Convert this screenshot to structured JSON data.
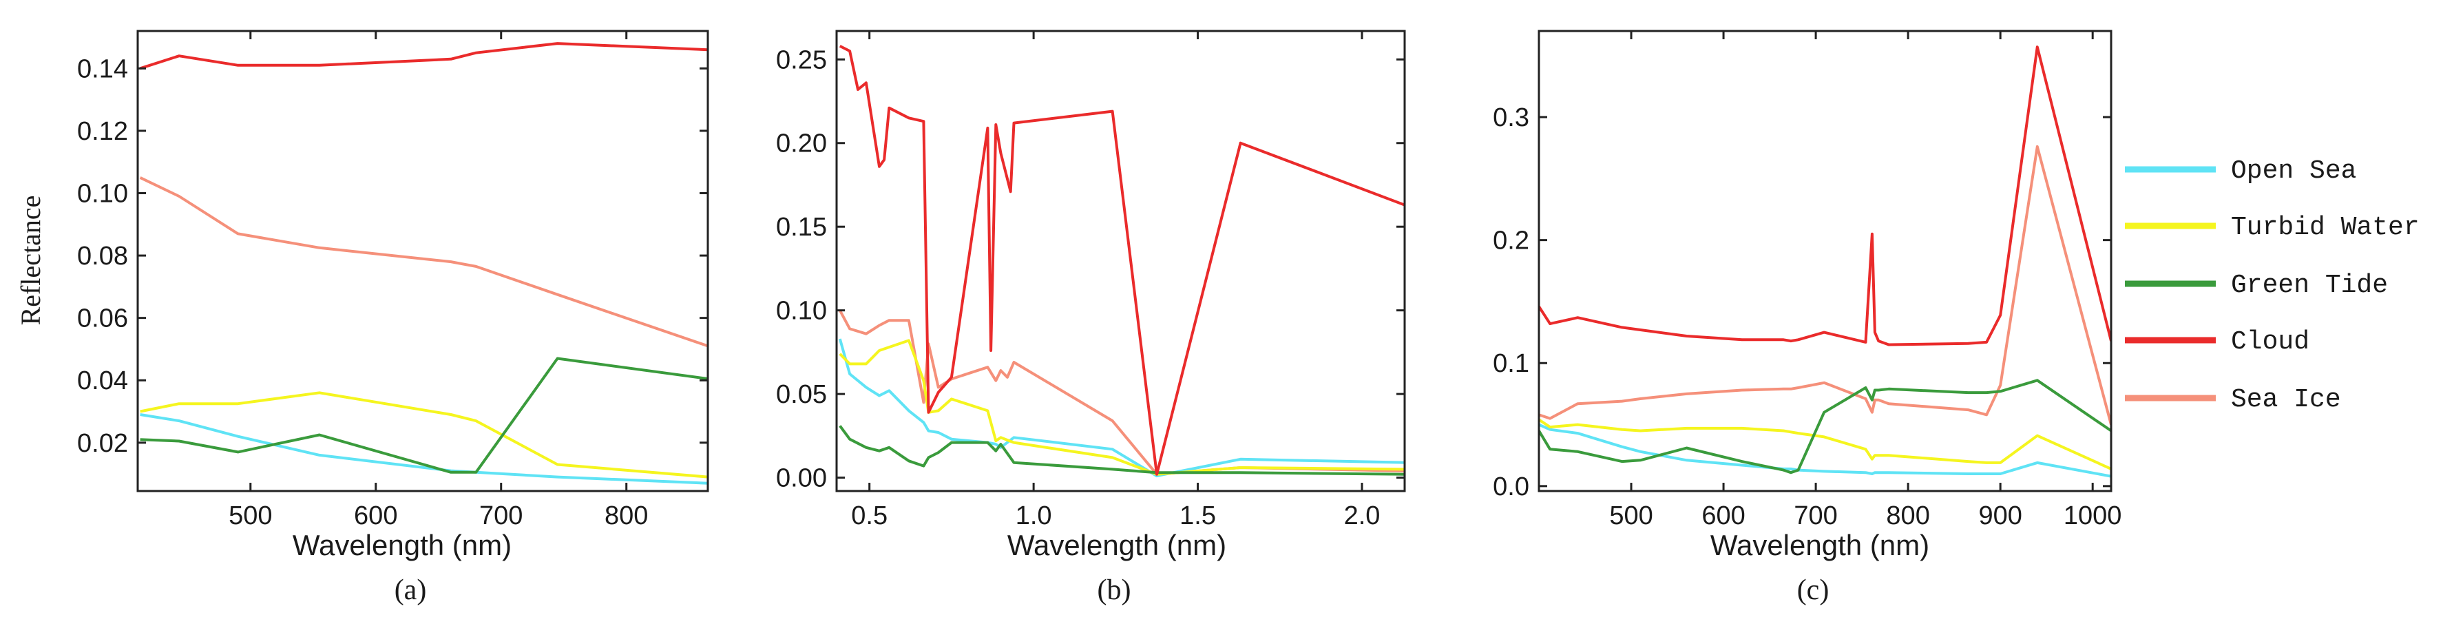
{
  "chart_data": [
    {
      "type": "line",
      "panel_label": "(a)",
      "xlabel": "Wavelength (nm)",
      "ylabel": "Reflectance",
      "xlim": [
        410,
        865
      ],
      "ylim": [
        0.0045,
        0.152
      ],
      "xticks": [
        500,
        600,
        700,
        800
      ],
      "yticks": [
        0.02,
        0.04,
        0.06,
        0.08,
        0.1,
        0.12,
        0.14
      ],
      "ytick_labels": [
        "0.02",
        "0.04",
        "0.06",
        "0.08",
        "0.10",
        "0.12",
        "0.14"
      ],
      "series": [
        {
          "name": "Open Sea",
          "x": [
            412,
            443,
            490,
            555,
            660,
            680,
            745,
            865
          ],
          "y": [
            0.029,
            0.027,
            0.022,
            0.016,
            0.011,
            0.0105,
            0.009,
            0.007
          ]
        },
        {
          "name": "Turbid Water",
          "x": [
            412,
            443,
            490,
            555,
            660,
            680,
            745,
            865
          ],
          "y": [
            0.03,
            0.0325,
            0.0325,
            0.036,
            0.029,
            0.027,
            0.013,
            0.009
          ]
        },
        {
          "name": "Green Tide",
          "x": [
            412,
            443,
            490,
            555,
            660,
            680,
            745,
            865
          ],
          "y": [
            0.021,
            0.0205,
            0.017,
            0.0225,
            0.0105,
            0.0105,
            0.047,
            0.0405
          ]
        },
        {
          "name": "Cloud",
          "x": [
            412,
            443,
            490,
            555,
            660,
            680,
            745,
            865
          ],
          "y": [
            0.14,
            0.144,
            0.141,
            0.141,
            0.143,
            0.145,
            0.148,
            0.146
          ]
        },
        {
          "name": "Sea Ice",
          "x": [
            412,
            443,
            490,
            555,
            660,
            680,
            745,
            865
          ],
          "y": [
            0.105,
            0.099,
            0.087,
            0.0825,
            0.078,
            0.0765,
            0.0675,
            0.051
          ]
        }
      ]
    },
    {
      "type": "line",
      "panel_label": "(b)",
      "xlabel": "Wavelength (nm)",
      "ylabel": "",
      "xlim": [
        0.4,
        2.13
      ],
      "ylim": [
        -0.008,
        0.267
      ],
      "xticks": [
        0.5,
        1.0,
        1.5,
        2.0
      ],
      "xtick_labels": [
        "0.5",
        "1.0",
        "1.5",
        "2.0"
      ],
      "yticks": [
        0.0,
        0.05,
        0.1,
        0.15,
        0.2,
        0.25
      ],
      "ytick_labels": [
        "0.00",
        "0.05",
        "0.10",
        "0.15",
        "0.20",
        "0.25"
      ],
      "series": [
        {
          "name": "Open Sea",
          "x": [
            0.41,
            0.44,
            0.49,
            0.53,
            0.56,
            0.62,
            0.665,
            0.68,
            0.71,
            0.75,
            0.86,
            0.885,
            0.9,
            0.94,
            1.24,
            1.375,
            1.63,
            2.13
          ],
          "y": [
            0.083,
            0.062,
            0.054,
            0.049,
            0.052,
            0.04,
            0.033,
            0.028,
            0.027,
            0.023,
            0.021,
            0.02,
            0.018,
            0.024,
            0.017,
            0.001,
            0.011,
            0.009
          ]
        },
        {
          "name": "Turbid Water",
          "x": [
            0.41,
            0.44,
            0.49,
            0.53,
            0.56,
            0.62,
            0.665,
            0.68,
            0.71,
            0.75,
            0.86,
            0.885,
            0.9,
            0.94,
            1.24,
            1.375,
            1.63,
            2.13
          ],
          "y": [
            0.074,
            0.068,
            0.068,
            0.076,
            0.078,
            0.082,
            0.058,
            0.039,
            0.04,
            0.047,
            0.04,
            0.022,
            0.024,
            0.021,
            0.012,
            0.002,
            0.006,
            0.005
          ]
        },
        {
          "name": "Green Tide",
          "x": [
            0.41,
            0.44,
            0.49,
            0.53,
            0.56,
            0.62,
            0.665,
            0.68,
            0.71,
            0.75,
            0.86,
            0.885,
            0.9,
            0.94,
            1.24,
            1.375,
            1.63,
            2.13
          ],
          "y": [
            0.031,
            0.023,
            0.018,
            0.016,
            0.018,
            0.01,
            0.007,
            0.012,
            0.015,
            0.021,
            0.021,
            0.016,
            0.02,
            0.009,
            0.005,
            0.003,
            0.003,
            0.002
          ]
        },
        {
          "name": "Cloud",
          "x": [
            0.41,
            0.44,
            0.465,
            0.49,
            0.53,
            0.545,
            0.56,
            0.62,
            0.665,
            0.68,
            0.71,
            0.75,
            0.86,
            0.87,
            0.885,
            0.9,
            0.93,
            0.94,
            1.24,
            1.375,
            1.63,
            2.13
          ],
          "y": [
            0.258,
            0.255,
            0.232,
            0.236,
            0.186,
            0.19,
            0.221,
            0.215,
            0.213,
            0.039,
            0.051,
            0.06,
            0.209,
            0.076,
            0.211,
            0.194,
            0.171,
            0.212,
            0.219,
            0.002,
            0.2,
            0.163
          ]
        },
        {
          "name": "Sea Ice",
          "x": [
            0.41,
            0.44,
            0.49,
            0.53,
            0.56,
            0.62,
            0.665,
            0.68,
            0.71,
            0.75,
            0.86,
            0.885,
            0.9,
            0.92,
            0.94,
            1.24,
            1.375,
            1.63,
            2.13
          ],
          "y": [
            0.1,
            0.089,
            0.086,
            0.091,
            0.094,
            0.094,
            0.045,
            0.08,
            0.054,
            0.059,
            0.066,
            0.058,
            0.064,
            0.06,
            0.069,
            0.034,
            0.002,
            0.006,
            0.004
          ]
        }
      ]
    },
    {
      "type": "line",
      "panel_label": "(c)",
      "xlabel": "Wavelength (nm)",
      "ylabel": "",
      "xlim": [
        400,
        1020
      ],
      "ylim": [
        -0.004,
        0.37
      ],
      "xticks": [
        500,
        600,
        700,
        800,
        900,
        1000
      ],
      "yticks": [
        0.0,
        0.1,
        0.2,
        0.3
      ],
      "ytick_labels": [
        "0.0",
        "0.1",
        "0.2",
        "0.3"
      ],
      "series": [
        {
          "name": "Open Sea",
          "x": [
            400,
            412,
            442,
            490,
            510,
            560,
            620,
            665,
            673,
            681,
            709,
            754,
            761,
            764,
            768,
            779,
            865,
            885,
            900,
            940,
            1020
          ],
          "y": [
            0.05,
            0.046,
            0.043,
            0.032,
            0.028,
            0.021,
            0.017,
            0.014,
            0.014,
            0.013,
            0.012,
            0.011,
            0.01,
            0.011,
            0.011,
            0.011,
            0.01,
            0.01,
            0.01,
            0.019,
            0.008
          ]
        },
        {
          "name": "Turbid Water",
          "x": [
            400,
            412,
            442,
            490,
            510,
            560,
            620,
            665,
            673,
            681,
            709,
            754,
            761,
            764,
            768,
            779,
            865,
            885,
            900,
            940,
            1020
          ],
          "y": [
            0.054,
            0.048,
            0.05,
            0.046,
            0.045,
            0.047,
            0.047,
            0.045,
            0.044,
            0.043,
            0.04,
            0.03,
            0.022,
            0.025,
            0.025,
            0.025,
            0.02,
            0.019,
            0.019,
            0.041,
            0.014
          ]
        },
        {
          "name": "Green Tide",
          "x": [
            400,
            412,
            442,
            490,
            510,
            560,
            620,
            665,
            673,
            681,
            709,
            754,
            761,
            764,
            768,
            779,
            865,
            885,
            900,
            940,
            1020
          ],
          "y": [
            0.045,
            0.03,
            0.028,
            0.02,
            0.021,
            0.031,
            0.02,
            0.013,
            0.011,
            0.013,
            0.06,
            0.08,
            0.07,
            0.078,
            0.078,
            0.079,
            0.076,
            0.076,
            0.077,
            0.086,
            0.045
          ]
        },
        {
          "name": "Cloud",
          "x": [
            400,
            412,
            442,
            490,
            510,
            560,
            620,
            665,
            673,
            681,
            709,
            754,
            761,
            764,
            768,
            779,
            865,
            885,
            900,
            940,
            1020
          ],
          "y": [
            0.146,
            0.132,
            0.137,
            0.129,
            0.127,
            0.122,
            0.119,
            0.119,
            0.118,
            0.119,
            0.125,
            0.117,
            0.205,
            0.125,
            0.118,
            0.115,
            0.116,
            0.117,
            0.139,
            0.357,
            0.118
          ]
        },
        {
          "name": "Sea Ice",
          "x": [
            400,
            412,
            442,
            490,
            510,
            560,
            620,
            665,
            673,
            681,
            709,
            754,
            761,
            764,
            768,
            779,
            865,
            885,
            900,
            940,
            1020
          ],
          "y": [
            0.058,
            0.055,
            0.067,
            0.069,
            0.071,
            0.075,
            0.078,
            0.079,
            0.079,
            0.08,
            0.084,
            0.071,
            0.06,
            0.07,
            0.07,
            0.067,
            0.062,
            0.058,
            0.082,
            0.276,
            0.05
          ]
        }
      ]
    }
  ],
  "legend": {
    "placement": "right",
    "entries": [
      "Open Sea",
      "Turbid Water",
      "Green Tide",
      "Cloud",
      "Sea Ice"
    ]
  },
  "colors": {
    "Open Sea": "#5fe3f5",
    "Turbid Water": "#f5f51f",
    "Green Tide": "#3a9b3c",
    "Cloud": "#ea2b2b",
    "Sea Ice": "#f5907a",
    "axis": "#222222",
    "text": "#1a1a1a"
  }
}
